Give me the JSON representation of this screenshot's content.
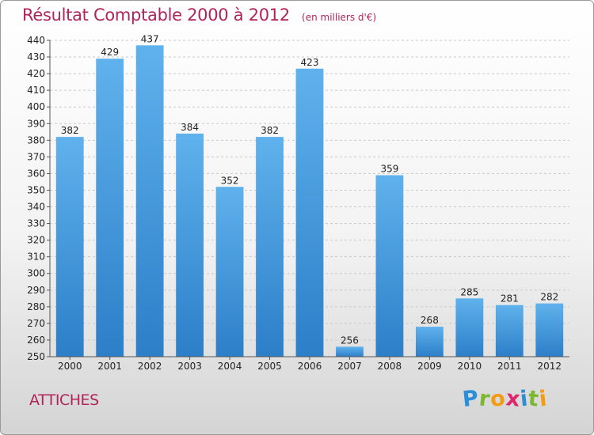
{
  "chart_data": {
    "type": "bar",
    "title": "Résultat Comptable 2000 à 2012",
    "unit": "(en milliers d'€)",
    "categories": [
      "2000",
      "2001",
      "2002",
      "2003",
      "2004",
      "2005",
      "2006",
      "2007",
      "2008",
      "2009",
      "2010",
      "2011",
      "2012"
    ],
    "values": [
      382,
      429,
      437,
      384,
      352,
      382,
      423,
      256,
      359,
      268,
      285,
      281,
      282
    ],
    "ylim": [
      250,
      440
    ],
    "ytick_step": 10,
    "grid": true,
    "bar_color": "#4a9ee0"
  },
  "footer": {
    "commune": "ATTICHES",
    "logo_letters": [
      {
        "ch": "P",
        "color": "#2a8fd6"
      },
      {
        "ch": "r",
        "color": "#7cb82f"
      },
      {
        "ch": "o",
        "color": "#f39c12"
      },
      {
        "ch": "x",
        "color": "#e0266d"
      },
      {
        "ch": "i",
        "color": "#2a8fd6"
      },
      {
        "ch": "t",
        "color": "#7cb82f"
      },
      {
        "ch": "i",
        "color": "#f39c12"
      }
    ]
  }
}
